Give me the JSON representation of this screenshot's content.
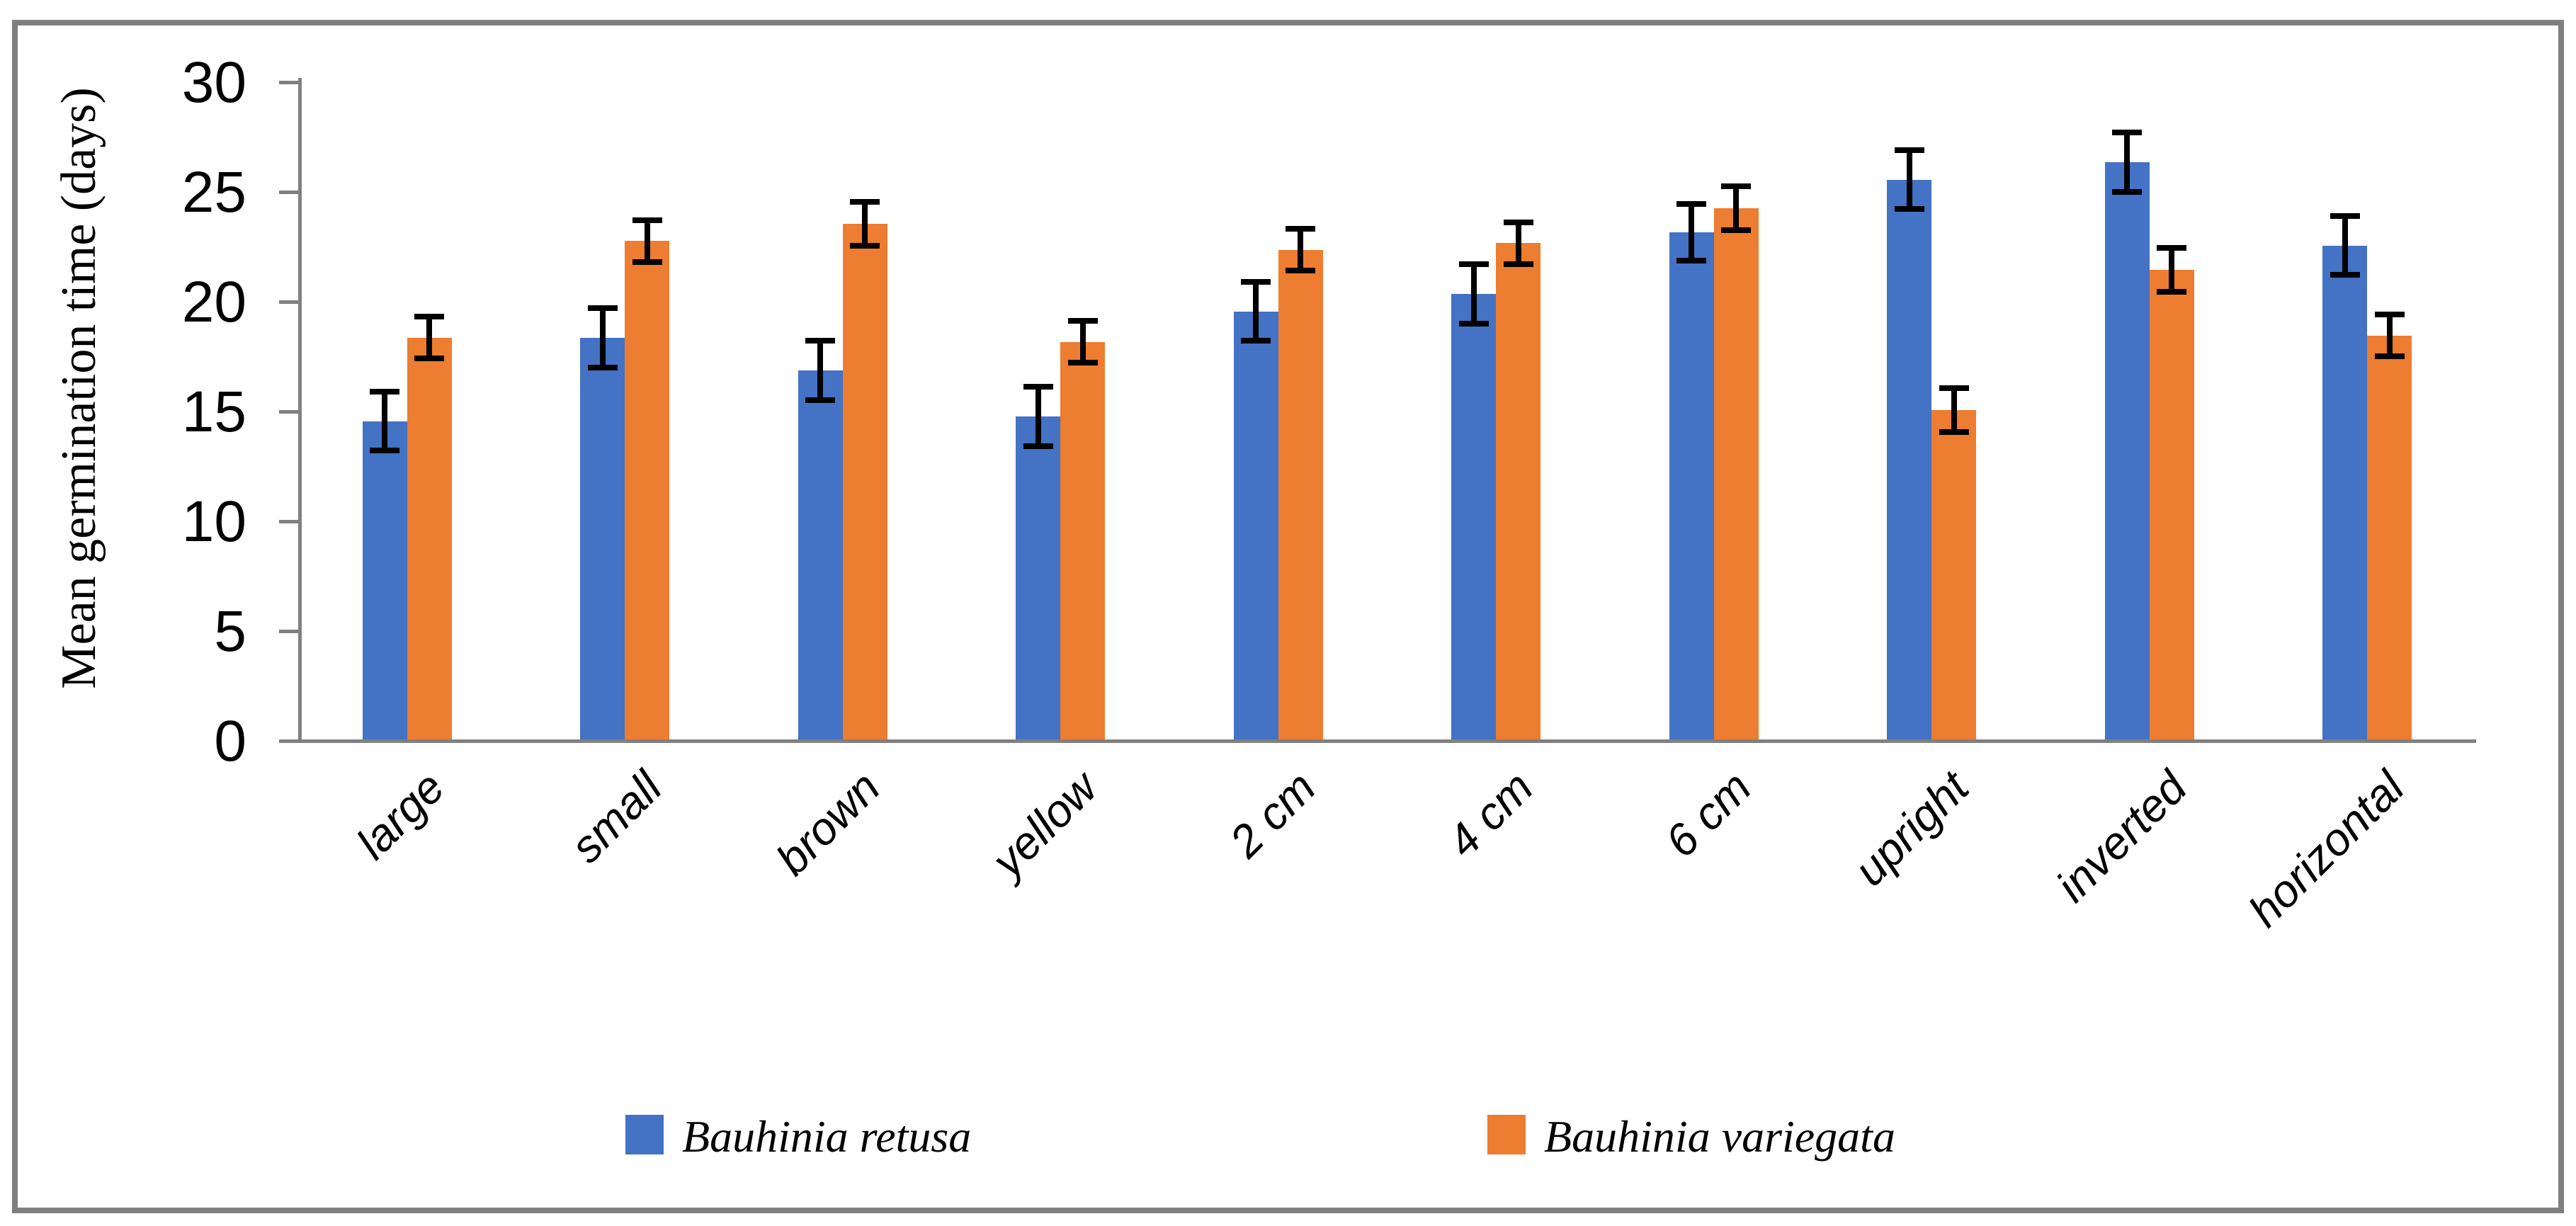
{
  "chart_data": {
    "type": "bar",
    "title": "",
    "xlabel": "",
    "ylabel": "Mean germination time (days)",
    "ylim": [
      0,
      30
    ],
    "yticks": [
      0,
      5,
      10,
      15,
      20,
      25,
      30
    ],
    "grid": false,
    "legend_position": "bottom",
    "error_bars": true,
    "categories": [
      "large",
      "small",
      "brown",
      "yellow",
      "2 cm",
      "4 cm",
      "6 cm",
      "upright",
      "inverted",
      "horizontal"
    ],
    "series": [
      {
        "name": "Bauhinia  retusa",
        "color": "#4472C4",
        "values": [
          14.5,
          18.3,
          16.8,
          14.7,
          19.5,
          20.3,
          23.1,
          25.5,
          26.3,
          22.5
        ],
        "errors": [
          1.35,
          1.35,
          1.35,
          1.35,
          1.35,
          1.35,
          1.3,
          1.35,
          1.35,
          1.35
        ]
      },
      {
        "name": "Bauhinia variegata",
        "color": "#ED7D31",
        "values": [
          18.3,
          22.7,
          23.5,
          18.1,
          22.3,
          22.6,
          24.2,
          15.0,
          21.4,
          18.4
        ],
        "errors": [
          0.95,
          0.95,
          1.0,
          0.95,
          0.95,
          0.95,
          1.0,
          1.0,
          1.0,
          0.95
        ]
      }
    ],
    "colors": {
      "axis": "#808080",
      "error_bar": "#000000",
      "frame_border": "#808080",
      "background": "#FFFFFF",
      "text": "#000000"
    }
  },
  "legend": {
    "items": [
      {
        "label": "Bauhinia  retusa",
        "color": "#4472C4"
      },
      {
        "label": "Bauhinia variegata",
        "color": "#ED7D31"
      }
    ]
  }
}
